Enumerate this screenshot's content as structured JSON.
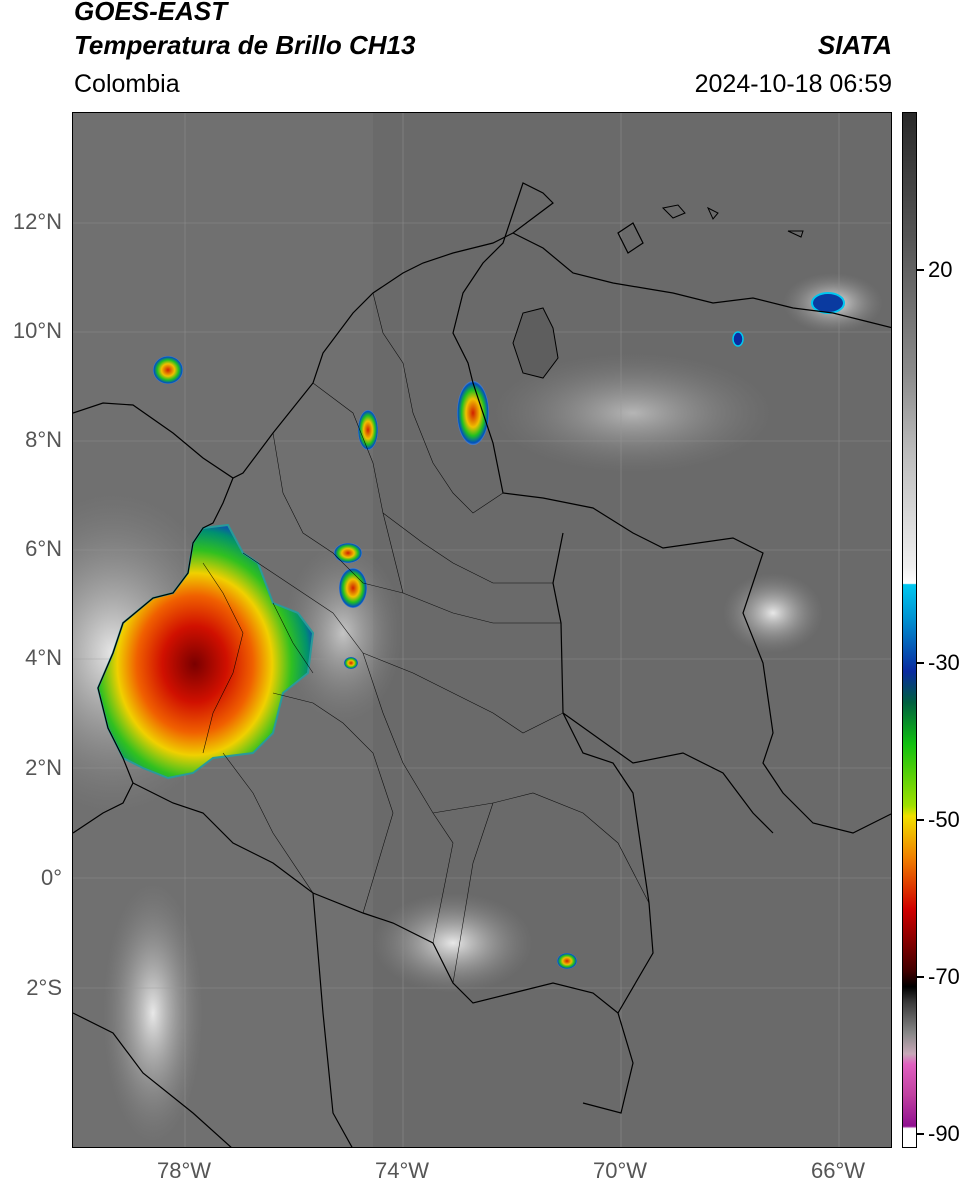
{
  "header": {
    "satellite": "GOES-EAST",
    "product": "Temperatura de Brillo CH13",
    "agency": "SIATA",
    "region": "Colombia",
    "timestamp": "2024-10-18 06:59"
  },
  "axes": {
    "lat_labels": [
      "12°N",
      "10°N",
      "8°N",
      "6°N",
      "4°N",
      "2°N",
      "0°",
      "2°S"
    ],
    "lon_labels": [
      "78°W",
      "74°W",
      "70°W",
      "66°W"
    ]
  },
  "colorbar": {
    "labels": [
      "20",
      "-30",
      "-50",
      "-70",
      "-90"
    ],
    "colors": {
      "gray_dark": "#2a2a2a",
      "gray_light": "#f0f0f0",
      "cyan": "#00c8f0",
      "blue": "#0a2aa0",
      "green": "#10c010",
      "yellow": "#f0e000",
      "orange": "#f08000",
      "red": "#d00000",
      "dark_red": "#400000",
      "pink": "#e060c0",
      "purple": "#901090"
    }
  }
}
